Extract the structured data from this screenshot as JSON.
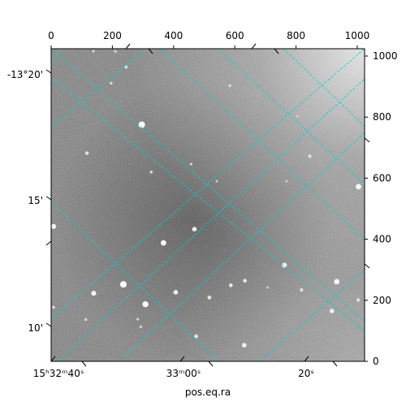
{
  "chart_data": {
    "type": "heatmap",
    "title": "",
    "xlabel": "pos.eq.ra",
    "ylabel": "",
    "pixel_axes": {
      "x_range": [
        0,
        1024
      ],
      "y_range": [
        0,
        1024
      ],
      "top_ticks": [
        "0",
        "200",
        "400",
        "600",
        "800",
        "1000"
      ],
      "top_tick_values": [
        0,
        200,
        400,
        600,
        800,
        1000
      ],
      "right_ticks": [
        "0",
        "200",
        "400",
        "600",
        "800",
        "1000"
      ],
      "right_tick_values": [
        0,
        200,
        400,
        600,
        800,
        1000
      ]
    },
    "world_axes": {
      "ra_tick_labels": [
        "15ʰ32ᵐ40ˢ",
        "33ᵐ00ˢ",
        "20ˢ"
      ],
      "dec_tick_labels": [
        "-13°20'",
        "15'",
        "10'"
      ]
    },
    "grid": true,
    "grid_color": "#00d2d2",
    "colormap": "gray",
    "image_background": "#6b6b6b",
    "stars": [
      {
        "x": 296,
        "y": 775,
        "brightness": 1.0
      },
      {
        "x": 236,
        "y": 252,
        "brightness": 1.0
      },
      {
        "x": 308,
        "y": 187,
        "brightness": 0.95
      },
      {
        "x": 367,
        "y": 388,
        "brightness": 0.9
      },
      {
        "x": 468,
        "y": 433,
        "brightness": 0.8
      },
      {
        "x": 407,
        "y": 226,
        "brightness": 0.8
      },
      {
        "x": 139,
        "y": 223,
        "brightness": 0.85
      },
      {
        "x": 8,
        "y": 442,
        "brightness": 0.85
      },
      {
        "x": 1004,
        "y": 572,
        "brightness": 0.9
      },
      {
        "x": 933,
        "y": 261,
        "brightness": 0.9
      },
      {
        "x": 762,
        "y": 315,
        "brightness": 0.85
      },
      {
        "x": 917,
        "y": 165,
        "brightness": 0.8
      },
      {
        "x": 631,
        "y": 53,
        "brightness": 0.8
      },
      {
        "x": 474,
        "y": 82,
        "brightness": 0.7
      },
      {
        "x": 517,
        "y": 209,
        "brightness": 0.7
      },
      {
        "x": 587,
        "y": 249,
        "brightness": 0.7
      },
      {
        "x": 633,
        "y": 264,
        "brightness": 0.7
      },
      {
        "x": 818,
        "y": 234,
        "brightness": 0.65
      },
      {
        "x": 1003,
        "y": 201,
        "brightness": 0.65
      },
      {
        "x": 845,
        "y": 672,
        "brightness": 0.65
      },
      {
        "x": 117,
        "y": 682,
        "brightness": 0.65
      },
      {
        "x": 245,
        "y": 964,
        "brightness": 0.6
      },
      {
        "x": 584,
        "y": 903,
        "brightness": 0.55
      },
      {
        "x": 196,
        "y": 911,
        "brightness": 0.55
      },
      {
        "x": 113,
        "y": 137,
        "brightness": 0.55
      },
      {
        "x": 8,
        "y": 177,
        "brightness": 0.55
      },
      {
        "x": 327,
        "y": 620,
        "brightness": 0.55
      },
      {
        "x": 283,
        "y": 138,
        "brightness": 0.5
      },
      {
        "x": 293,
        "y": 113,
        "brightness": 0.5
      },
      {
        "x": 457,
        "y": 646,
        "brightness": 0.5
      },
      {
        "x": 541,
        "y": 590,
        "brightness": 0.45
      },
      {
        "x": 707,
        "y": 242,
        "brightness": 0.45
      },
      {
        "x": 990,
        "y": 940,
        "brightness": 0.55
      },
      {
        "x": 210,
        "y": 1015,
        "brightness": 0.5
      },
      {
        "x": 138,
        "y": 1016,
        "brightness": 0.5
      },
      {
        "x": 769,
        "y": 590,
        "brightness": 0.45
      },
      {
        "x": 805,
        "y": 803,
        "brightness": 0.45
      }
    ]
  }
}
